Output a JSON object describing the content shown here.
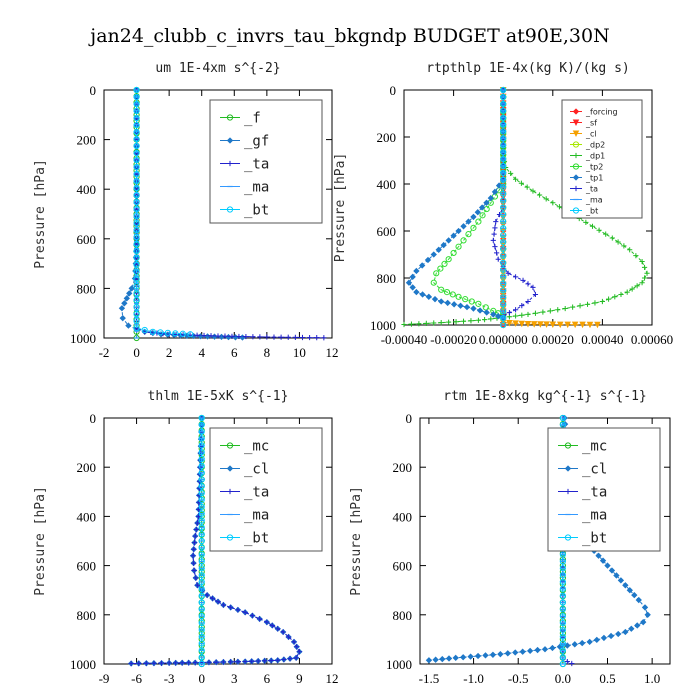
{
  "title": "jan24_clubb_c_invrs_tau_bkgndp  BUDGET at90E,30N",
  "colors": {
    "green": "#22bb22",
    "red": "#ff2222",
    "blue": "#2222cc",
    "cyan": "#00ccff",
    "steel": "#1f78c8",
    "orange": "#f5a000",
    "yellowgreen": "#a8e800",
    "lime": "#33dd33",
    "sky": "#3399ff"
  },
  "chart_data": [
    {
      "type": "line",
      "title": "um   1E-4xm s^{-2}",
      "ylabel": "Pressure [hPa]",
      "xlim": [
        -2,
        12
      ],
      "ylim": [
        1000,
        0
      ],
      "xticks": [
        "-2",
        "0",
        "2",
        "4",
        "6",
        "8",
        "10",
        "12"
      ],
      "yticks": [
        "0",
        "200",
        "400",
        "600",
        "800",
        "1000"
      ],
      "legend": {
        "position": "top-right",
        "size": "large"
      },
      "series": [
        {
          "name": "_f",
          "color": "#22bb22",
          "marker": "circle",
          "x": [
            0,
            0,
            0,
            0,
            0,
            0,
            0,
            0,
            0,
            0,
            0,
            0
          ],
          "y": [
            0,
            100,
            200,
            300,
            400,
            500,
            600,
            700,
            800,
            900,
            950,
            1000
          ]
        },
        {
          "name": "_gf",
          "color": "#1f78c8",
          "marker": "diamond",
          "x": [
            0,
            0,
            -0.05,
            -0.1,
            -0.3,
            -0.6,
            -0.9,
            -0.85,
            -0.5,
            0,
            0.5,
            1.5,
            3.5,
            6.5
          ],
          "y": [
            0,
            600,
            700,
            760,
            800,
            840,
            880,
            920,
            950,
            965,
            975,
            985,
            992,
            998
          ]
        },
        {
          "name": "_ta",
          "color": "#2222cc",
          "marker": "plus",
          "x": [
            0,
            0,
            0.5,
            2,
            5,
            8,
            11.5
          ],
          "y": [
            0,
            960,
            975,
            985,
            992,
            996,
            999
          ]
        },
        {
          "name": "_ma",
          "color": "#3399ff",
          "marker": "dash",
          "x": [
            0,
            0,
            0
          ],
          "y": [
            0,
            500,
            1000
          ]
        },
        {
          "name": "_bt",
          "color": "#00ccff",
          "marker": "circle",
          "x": [
            0,
            0,
            1,
            3.3
          ],
          "y": [
            0,
            960,
            975,
            985
          ]
        }
      ]
    },
    {
      "type": "line",
      "title": "rtpthlp  1E-4x(kg K)/(kg s)",
      "ylabel": "Pressure [hPa]",
      "xlim": [
        -0.0004,
        0.0006
      ],
      "ylim": [
        1000,
        0
      ],
      "xticks": [
        "-0.00040",
        "-0.00020",
        "0.000000",
        "0.00020",
        "0.00040",
        "0.00060"
      ],
      "yticks": [
        "0",
        "200",
        "400",
        "600",
        "800",
        "1000"
      ],
      "legend": {
        "position": "top-right",
        "size": "small"
      },
      "series": [
        {
          "name": "_forcing",
          "color": "#ff2222",
          "marker": "diamond",
          "x": [
            0,
            0,
            0,
            0,
            0,
            0,
            0,
            0,
            0,
            0,
            0
          ],
          "y": [
            0,
            100,
            200,
            300,
            400,
            500,
            600,
            700,
            800,
            900,
            1000
          ]
        },
        {
          "name": "_sf",
          "color": "#ff2222",
          "marker": "triangle",
          "x": [
            0,
            0,
            0,
            0,
            0,
            0
          ],
          "y": [
            0,
            200,
            400,
            600,
            800,
            1000
          ]
        },
        {
          "name": "_cl",
          "color": "#f5a000",
          "marker": "triangle",
          "x": [
            0,
            0,
            0.0001,
            0.0002,
            0.00038
          ],
          "y": [
            0,
            990,
            996,
            998,
            999
          ]
        },
        {
          "name": "_dp2",
          "color": "#a8e800",
          "marker": "circle",
          "x": [
            0,
            0,
            0
          ],
          "y": [
            0,
            500,
            1000
          ]
        },
        {
          "name": "_dp1",
          "color": "#22bb22",
          "marker": "plus",
          "x": [
            0,
            0,
            1e-05,
            5e-05,
            0.00012,
            0.0002,
            0.00028,
            0.00036,
            0.00044,
            0.00051,
            0.00056,
            0.00058,
            0.00056,
            0.0005,
            0.0004,
            0.00025,
            0.0001,
            0,
            -0.0001,
            -0.00025,
            -0.0004
          ],
          "y": [
            0,
            280,
            330,
            380,
            430,
            480,
            530,
            580,
            630,
            680,
            730,
            780,
            820,
            860,
            900,
            930,
            955,
            968,
            980,
            990,
            998
          ]
        },
        {
          "name": "_tp2",
          "color": "#33dd33",
          "marker": "circle",
          "x": [
            0,
            0,
            -5e-05,
            -0.0001,
            -0.00016,
            -0.00022,
            -0.00027,
            -0.00028,
            -0.00025,
            -0.00018,
            -0.0001,
            -4e-05,
            0
          ],
          "y": [
            0,
            400,
            480,
            560,
            640,
            720,
            780,
            820,
            850,
            880,
            910,
            940,
            960
          ]
        },
        {
          "name": "_tp1",
          "color": "#1f78c8",
          "marker": "diamond",
          "x": [
            0,
            0,
            -5e-05,
            -0.00012,
            -0.0002,
            -0.00028,
            -0.00035,
            -0.00038,
            -0.00035,
            -0.00025,
            -0.00012,
            -4e-05,
            0
          ],
          "y": [
            0,
            380,
            460,
            540,
            620,
            700,
            770,
            820,
            860,
            900,
            930,
            955,
            970
          ]
        },
        {
          "name": "_ta",
          "color": "#2222cc",
          "marker": "plus",
          "x": [
            0,
            0,
            -3e-05,
            -4e-05,
            -2e-05,
            2e-05,
            8e-05,
            0.00012,
            0.00013,
            0.0001,
            5e-05,
            0
          ],
          "y": [
            0,
            500,
            560,
            640,
            720,
            780,
            810,
            840,
            870,
            900,
            935,
            960
          ]
        },
        {
          "name": "_ma",
          "color": "#3399ff",
          "marker": "dash",
          "x": [
            0,
            0,
            0
          ],
          "y": [
            0,
            500,
            1000
          ]
        },
        {
          "name": "_bt",
          "color": "#00ccff",
          "marker": "circle",
          "x": [
            0,
            0,
            0
          ],
          "y": [
            0,
            500,
            1000
          ]
        }
      ]
    },
    {
      "type": "line",
      "title": "thlm   1E-5xK s^{-1}",
      "ylabel": "Pressure [hPa]",
      "xlim": [
        -9,
        12
      ],
      "ylim": [
        1000,
        0
      ],
      "xticks": [
        "-9",
        "-6",
        "-3",
        "0",
        "3",
        "6",
        "9",
        "12"
      ],
      "yticks": [
        "0",
        "200",
        "400",
        "600",
        "800",
        "1000"
      ],
      "legend": {
        "position": "top-right",
        "size": "large"
      },
      "series": [
        {
          "name": "_mc",
          "color": "#22bb22",
          "marker": "circle",
          "x": [
            0,
            0,
            0,
            0,
            0,
            0,
            0,
            0,
            0,
            0,
            0
          ],
          "y": [
            0,
            100,
            200,
            300,
            400,
            500,
            600,
            700,
            800,
            900,
            1000
          ]
        },
        {
          "name": "_cl",
          "color": "#1f78c8",
          "marker": "diamond",
          "x": [
            0,
            -0.3,
            -0.6,
            -0.8,
            -0.7,
            -0.4,
            0.5,
            2,
            4,
            6,
            7.5,
            8.5,
            9,
            8.7,
            7,
            4,
            0,
            -3,
            -6.5
          ],
          "y": [
            0,
            400,
            480,
            560,
            620,
            680,
            720,
            760,
            790,
            830,
            870,
            910,
            950,
            975,
            985,
            990,
            994,
            996,
            998
          ]
        },
        {
          "name": "_ta",
          "color": "#2222cc",
          "marker": "plus",
          "x": [
            0,
            -0.3,
            -0.6,
            -0.8,
            -0.7,
            -0.4,
            0.5,
            2,
            4,
            6,
            7.5,
            8.5,
            9,
            8.7,
            7,
            4,
            0,
            -3,
            -6.5
          ],
          "y": [
            0,
            400,
            480,
            560,
            620,
            680,
            720,
            760,
            790,
            830,
            870,
            910,
            950,
            975,
            985,
            990,
            994,
            996,
            998
          ]
        },
        {
          "name": "_ma",
          "color": "#3399ff",
          "marker": "dash",
          "x": [
            0,
            0,
            0
          ],
          "y": [
            0,
            500,
            1000
          ]
        },
        {
          "name": "_bt",
          "color": "#00ccff",
          "marker": "circle",
          "x": [
            0,
            0,
            0
          ],
          "y": [
            0,
            500,
            1000
          ]
        }
      ]
    },
    {
      "type": "line",
      "title": "rtm   1E-8xkg kg^{-1} s^{-1}",
      "ylabel": "Pressure [hPa]",
      "xlim": [
        -1.6,
        1.2
      ],
      "ylim": [
        1000,
        0
      ],
      "xticks": [
        "-1.5",
        "-1.0",
        "-0.5",
        "0.0",
        "0.5",
        "1.0"
      ],
      "yticks": [
        "0",
        "200",
        "400",
        "600",
        "800",
        "1000"
      ],
      "legend": {
        "position": "top-right",
        "size": "large"
      },
      "series": [
        {
          "name": "_mc",
          "color": "#22bb22",
          "marker": "circle",
          "x": [
            0,
            0,
            0,
            0,
            0,
            0,
            0,
            0,
            0,
            0,
            0
          ],
          "y": [
            0,
            100,
            200,
            300,
            400,
            500,
            600,
            700,
            800,
            900,
            1000
          ]
        },
        {
          "name": "_cl",
          "color": "#1f78c8",
          "marker": "diamond",
          "x": [
            0.02,
            0.04,
            0.06,
            0.07,
            0.07,
            0.08,
            0.1,
            0.15,
            0.25,
            0.35,
            0.45,
            0.55,
            0.65,
            0.75,
            0.85,
            0.92,
            0.95,
            0.9,
            0.7,
            0.3,
            -0.2,
            -0.7,
            -1.2,
            -1.5
          ],
          "y": [
            0,
            100,
            200,
            280,
            340,
            380,
            420,
            460,
            500,
            540,
            580,
            620,
            660,
            700,
            740,
            770,
            800,
            830,
            870,
            910,
            940,
            960,
            975,
            985
          ]
        },
        {
          "name": "_ta",
          "color": "#2222cc",
          "marker": "plus",
          "x": [
            0,
            0,
            0.05,
            0.1
          ],
          "y": [
            0,
            980,
            990,
            998
          ]
        },
        {
          "name": "_ma",
          "color": "#3399ff",
          "marker": "dash",
          "x": [
            0,
            0,
            0
          ],
          "y": [
            0,
            500,
            1000
          ]
        },
        {
          "name": "_bt",
          "color": "#00ccff",
          "marker": "circle",
          "x": [
            0,
            0,
            0
          ],
          "y": [
            0,
            500,
            1000
          ]
        }
      ]
    }
  ]
}
